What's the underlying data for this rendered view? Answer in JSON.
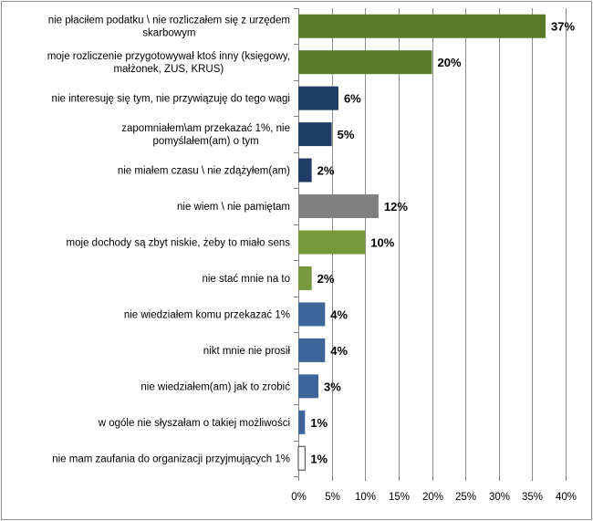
{
  "chart_data": {
    "type": "bar",
    "orientation": "horizontal",
    "title": "",
    "xlabel": "",
    "ylabel": "",
    "xlim": [
      0,
      40
    ],
    "grid": true,
    "legend": "none",
    "tick_labels": [
      "0%",
      "5%",
      "10%",
      "15%",
      "20%",
      "25%",
      "30%",
      "35%",
      "40%"
    ],
    "categories": [
      [
        "nie płaciłem podatku \\ nie rozliczałem się z urzędem",
        "skarbowym"
      ],
      [
        "moje rozliczenie przygotowywał ktoś inny (księgowy,",
        "małżonek, ZUS, KRUS)"
      ],
      [
        "nie interesuję się tym, nie przywiązuję do tego wagi"
      ],
      [
        "zapomniałem\\am przekazać 1%, nie",
        "pomyślałem(am) o tym"
      ],
      [
        "nie miałem czasu \\ nie zdążyłem(am)"
      ],
      [
        "nie wiem \\ nie pamiętam"
      ],
      [
        "moje dochody są zbyt niskie, żeby to miało sens"
      ],
      [
        "nie stać mnie na to"
      ],
      [
        "nie wiedziałem komu przekazać 1%"
      ],
      [
        "nikt mnie nie prosił"
      ],
      [
        "nie wiedziałem(am) jak to zrobić"
      ],
      [
        "w ogóle nie słyszałam o takiej możliwości"
      ],
      [
        "nie mam zaufania do organizacji przyjmujących 1%"
      ]
    ],
    "values": [
      37,
      20,
      6,
      5,
      2,
      12,
      10,
      2,
      4,
      4,
      3,
      1,
      1
    ],
    "value_labels": [
      "37%",
      "20%",
      "6%",
      "5%",
      "2%",
      "12%",
      "10%",
      "2%",
      "4%",
      "4%",
      "3%",
      "1%",
      "1%"
    ],
    "colors": [
      "#5a7a2a",
      "#5a7a2a",
      "#1f3d66",
      "#1f3d66",
      "#1f3d66",
      "#808080",
      "#77983a",
      "#77983a",
      "#3e659a",
      "#3e659a",
      "#3e659a",
      "#3e659a",
      "#ffffff"
    ]
  }
}
